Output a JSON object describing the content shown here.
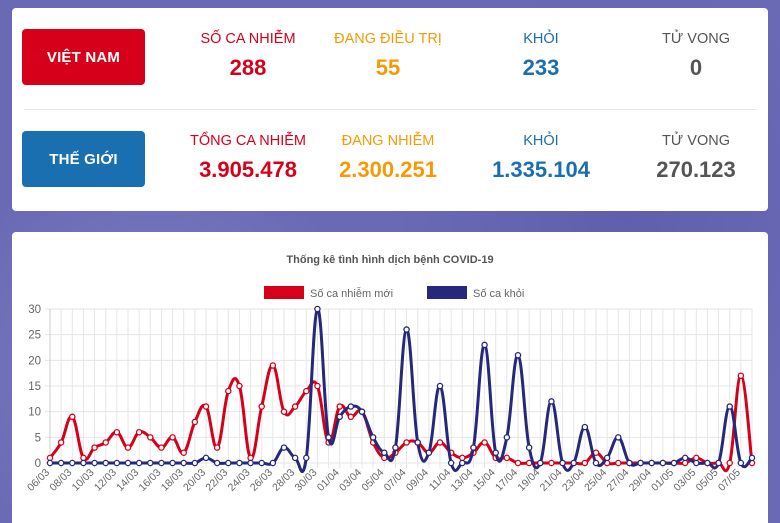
{
  "vietnam": {
    "label": "VIỆT NAM",
    "stats": [
      {
        "label": "SỐ CA NHIỄM",
        "value": "288",
        "color": "#d7001b"
      },
      {
        "label": "ĐANG ĐIỀU TRỊ",
        "value": "55",
        "color": "#f59a06"
      },
      {
        "label": "KHỎI",
        "value": "233",
        "color": "#1a6fb0"
      },
      {
        "label": "TỬ VONG",
        "value": "0",
        "color": "#555555"
      }
    ]
  },
  "world": {
    "label": "THẾ GIỚI",
    "stats": [
      {
        "label": "TỔNG CA NHIỄM",
        "value": "3.905.478",
        "color": "#d7001b"
      },
      {
        "label": "ĐANG NHIỄM",
        "value": "2.300.251",
        "color": "#f59a06"
      },
      {
        "label": "KHỎI",
        "value": "1.335.104",
        "color": "#1a6fb0"
      },
      {
        "label": "TỬ VONG",
        "value": "270.123",
        "color": "#555555"
      }
    ]
  },
  "chart_data": {
    "type": "line",
    "title": "Thống kê tình hình dịch bệnh COVID-19",
    "xlabel": "",
    "ylabel": "",
    "ylim": [
      0,
      30
    ],
    "yticks": [
      0,
      5,
      10,
      15,
      20,
      25,
      30
    ],
    "grid": true,
    "legend_position": "top",
    "x": [
      "06/03",
      "07/03",
      "08/03",
      "09/03",
      "10/03",
      "11/03",
      "12/03",
      "13/03",
      "14/03",
      "15/03",
      "16/03",
      "17/03",
      "18/03",
      "19/03",
      "20/03",
      "21/03",
      "22/03",
      "23/03",
      "24/03",
      "25/03",
      "26/03",
      "27/03",
      "28/03",
      "29/03",
      "30/03",
      "31/03",
      "01/04",
      "02/04",
      "03/04",
      "04/04",
      "05/04",
      "06/04",
      "07/04",
      "08/04",
      "09/04",
      "10/04",
      "11/04",
      "12/04",
      "13/04",
      "14/04",
      "15/04",
      "16/04",
      "17/04",
      "18/04",
      "19/04",
      "20/04",
      "21/04",
      "22/04",
      "23/04",
      "24/04",
      "25/04",
      "26/04",
      "27/04",
      "28/04",
      "29/04",
      "30/04",
      "01/05",
      "02/05",
      "03/05",
      "04/05",
      "05/05",
      "06/05",
      "07/05",
      "08/05"
    ],
    "tick_labels": [
      "06/03",
      "08/03",
      "10/03",
      "12/03",
      "14/03",
      "16/03",
      "18/03",
      "20/03",
      "22/03",
      "24/03",
      "26/03",
      "28/03",
      "30/03",
      "01/04",
      "03/04",
      "05/04",
      "07/04",
      "09/04",
      "11/04",
      "13/04",
      "15/04",
      "17/04",
      "19/04",
      "21/04",
      "23/04",
      "25/04",
      "27/04",
      "29/04",
      "01/05",
      "03/05",
      "05/05",
      "07/05"
    ],
    "series": [
      {
        "name": "Số ca nhiễm mới",
        "color": "#d7001b",
        "values": [
          1,
          4,
          9,
          1,
          3,
          4,
          6,
          3,
          6,
          5,
          3,
          5,
          2,
          8,
          11,
          3,
          14,
          15,
          1,
          11,
          19,
          10,
          11,
          14,
          15,
          4,
          11,
          9,
          10,
          4,
          1,
          2,
          4,
          4,
          2,
          4,
          2,
          1,
          2,
          4,
          1,
          1,
          0,
          0,
          0,
          0,
          0,
          0,
          0,
          2,
          0,
          0,
          0,
          0,
          0,
          0,
          0,
          0,
          1,
          0,
          0,
          0,
          17,
          0
        ]
      },
      {
        "name": "Số ca khỏi",
        "color": "#26287a",
        "values": [
          0,
          0,
          0,
          0,
          0,
          0,
          0,
          0,
          0,
          0,
          0,
          0,
          0,
          0,
          1,
          0,
          0,
          0,
          0,
          0,
          0,
          3,
          1,
          1,
          30,
          5,
          9,
          11,
          10,
          5,
          2,
          3,
          26,
          4,
          2,
          15,
          0,
          0,
          3,
          23,
          2,
          5,
          21,
          3,
          0,
          12,
          0,
          0,
          7,
          0,
          1,
          5,
          0,
          0,
          0,
          0,
          0,
          1,
          0,
          0,
          0,
          11,
          0,
          1
        ]
      }
    ]
  }
}
